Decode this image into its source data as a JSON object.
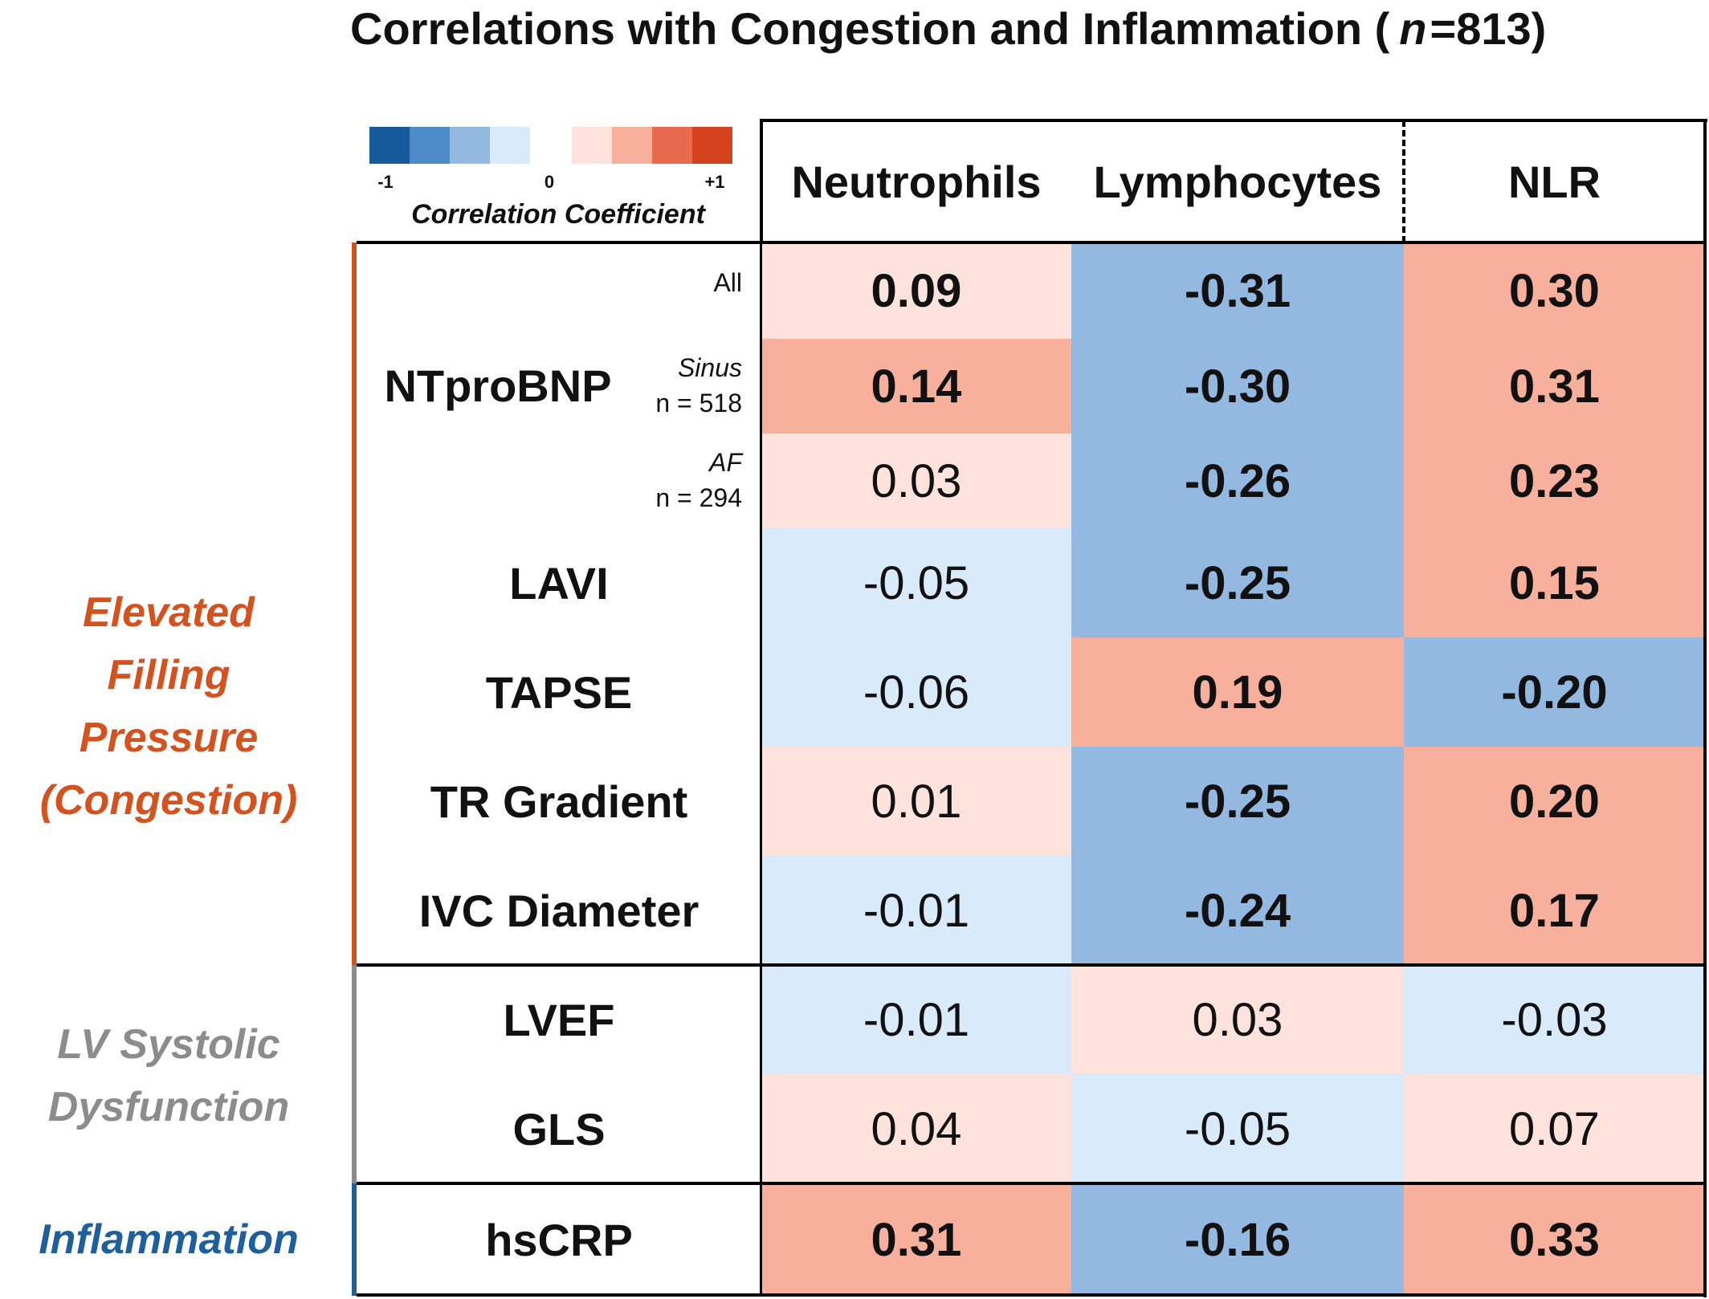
{
  "chart_data": {
    "type": "heatmap",
    "title": "Correlations with Congestion and Inflammation",
    "n_label": "n",
    "n_eq": " = ",
    "n_value": "813",
    "colorbar": {
      "label": "Correlation Coefficient",
      "ticks": [
        "-1",
        "0",
        "+1"
      ],
      "colors": [
        "#155a99",
        "#4d8cc8",
        "#93b9e0",
        "#d9eafa",
        "#fde3db",
        "#f7b09c",
        "#e86a4e",
        "#d4421e"
      ]
    },
    "columns": [
      "Neutrophils",
      "Lymphocytes",
      "NLR"
    ],
    "groups": [
      {
        "label_lines": [
          "Elevated",
          "Filling",
          "Pressure",
          "(Congestion)"
        ],
        "color": "#d4521e"
      },
      {
        "label_lines": [
          "LV Systolic",
          "Dysfunction"
        ],
        "color": "#8c8c8c"
      },
      {
        "label_lines": [
          "Inflammation"
        ],
        "color": "#1f5f9e"
      }
    ],
    "rows": [
      {
        "label": "NTproBNP",
        "sub": "All",
        "sub_n": "",
        "values": [
          "0.09",
          "-0.31",
          "0.30"
        ],
        "bold": [
          true,
          true,
          true
        ]
      },
      {
        "label": "",
        "sub": "Sinus",
        "sub_n": "n = 518",
        "values": [
          "0.14",
          "-0.30",
          "0.31"
        ],
        "bold": [
          true,
          true,
          true
        ]
      },
      {
        "label": "",
        "sub": "AF",
        "sub_n": "n = 294",
        "values": [
          "0.03",
          "-0.26",
          "0.23"
        ],
        "bold": [
          false,
          true,
          true
        ]
      },
      {
        "label": "LAVI",
        "sub": "",
        "sub_n": "",
        "values": [
          "-0.05",
          "-0.25",
          "0.15"
        ],
        "bold": [
          false,
          true,
          true
        ]
      },
      {
        "label": "TAPSE",
        "sub": "",
        "sub_n": "",
        "values": [
          "-0.06",
          "0.19",
          "-0.20"
        ],
        "bold": [
          false,
          true,
          true
        ]
      },
      {
        "label": "TR Gradient",
        "sub": "",
        "sub_n": "",
        "values": [
          "0.01",
          "-0.25",
          "0.20"
        ],
        "bold": [
          false,
          true,
          true
        ]
      },
      {
        "label": "IVC Diameter",
        "sub": "",
        "sub_n": "",
        "values": [
          "-0.01",
          "-0.24",
          "0.17"
        ],
        "bold": [
          false,
          true,
          true
        ]
      },
      {
        "label": "LVEF",
        "sub": "",
        "sub_n": "",
        "values": [
          "-0.01",
          "0.03",
          "-0.03"
        ],
        "bold": [
          false,
          false,
          false
        ]
      },
      {
        "label": "GLS",
        "sub": "",
        "sub_n": "",
        "values": [
          "0.04",
          "-0.05",
          "0.07"
        ],
        "bold": [
          false,
          false,
          false
        ]
      },
      {
        "label": "hsCRP",
        "sub": "",
        "sub_n": "",
        "values": [
          "0.31",
          "-0.16",
          "0.33"
        ],
        "bold": [
          true,
          true,
          true
        ]
      }
    ]
  }
}
